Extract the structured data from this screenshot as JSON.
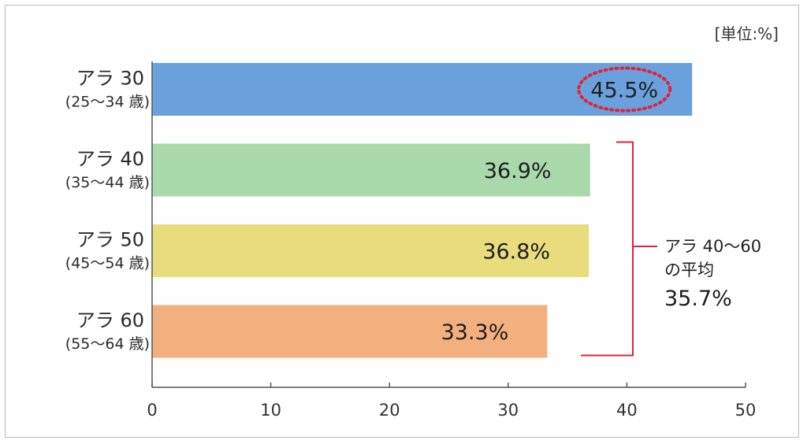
{
  "chart_data": {
    "type": "bar",
    "orientation": "horizontal",
    "unit_label": "[単位:%]",
    "categories": [
      {
        "name": "アラ 30",
        "range": "(25〜34 歳)"
      },
      {
        "name": "アラ 40",
        "range": "(35〜44 歳)"
      },
      {
        "name": "アラ 50",
        "range": "(45〜54 歳)"
      },
      {
        "name": "アラ 60",
        "range": "(55〜64 歳)"
      }
    ],
    "values": [
      45.5,
      36.9,
      36.8,
      33.3
    ],
    "value_labels": [
      "45.5%",
      "36.9%",
      "36.8%",
      "33.3%"
    ],
    "colors": [
      "#6aa1dc",
      "#a9d8ab",
      "#e9dc7c",
      "#f3b07f"
    ],
    "highlight": {
      "index": 0,
      "color": "#e0233a"
    },
    "xlim": [
      0,
      50
    ],
    "xticks": [
      0,
      10,
      20,
      30,
      40,
      50
    ],
    "grid": false,
    "annotation": {
      "line1": "アラ 40〜60",
      "line2": "の平均",
      "value": "35.7%",
      "covers": [
        1,
        2,
        3
      ],
      "color": "#e0233a"
    }
  }
}
